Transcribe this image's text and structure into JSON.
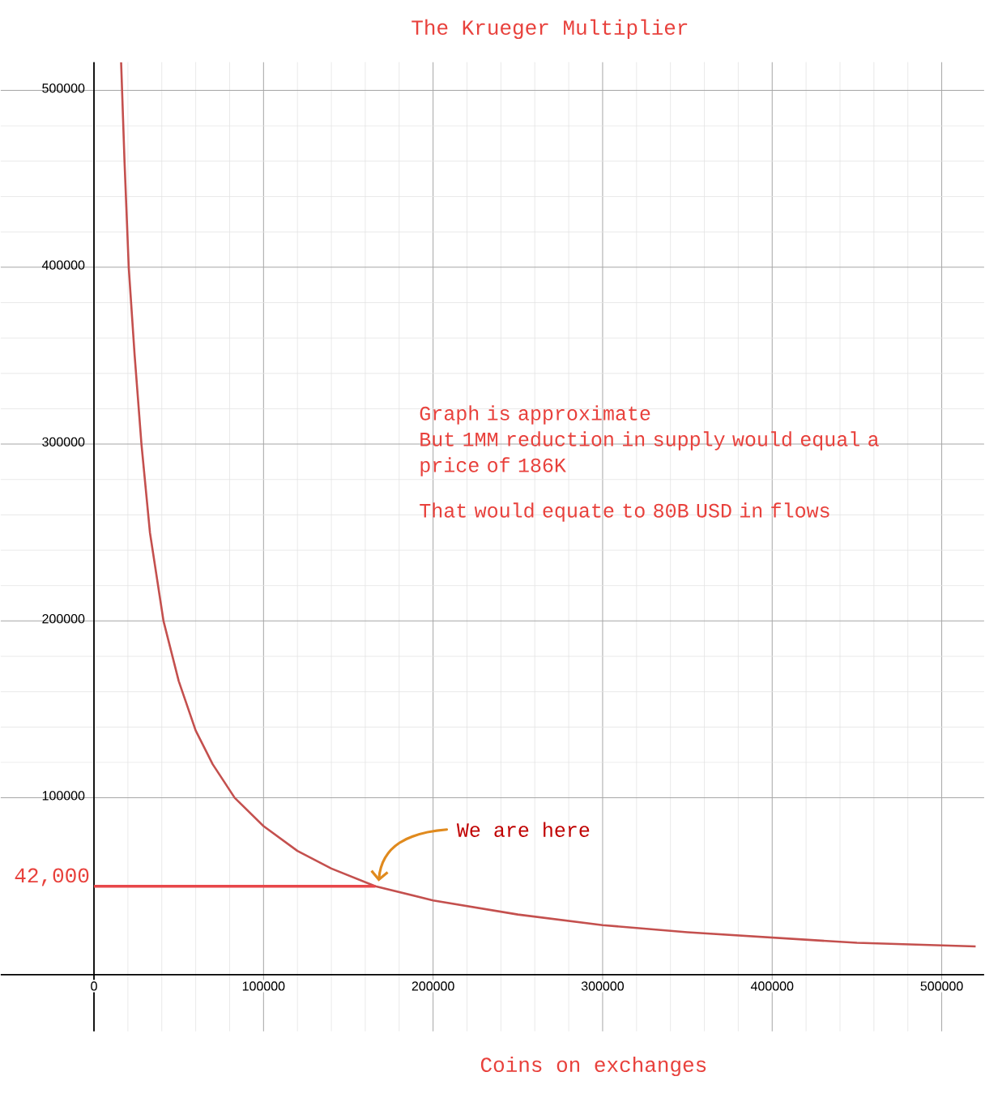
{
  "chart_data": {
    "type": "line",
    "title": "The Krueger Multiplier",
    "xlabel": "Coins on exchanges",
    "xlim": [
      -55000,
      525000
    ],
    "ylim": [
      -32000,
      516000
    ],
    "xticks": [
      0,
      100000,
      200000,
      300000,
      400000,
      500000
    ],
    "yticks": [
      100000,
      200000,
      300000,
      400000,
      500000
    ],
    "grid": true,
    "series": [
      {
        "color": "#c4504e",
        "x": [
          16000,
          18000,
          20500,
          24000,
          28000,
          33000,
          41000,
          50000,
          60000,
          70000,
          83000,
          100000,
          120000,
          140000,
          166000,
          200000,
          250000,
          300000,
          350000,
          400000,
          450000,
          520000
        ],
        "values": [
          516000,
          460000,
          400000,
          350000,
          300000,
          250000,
          200000,
          166000,
          138000,
          119000,
          100000,
          84000,
          70000,
          60000,
          50000,
          42000,
          34000,
          28000,
          24000,
          21000,
          18000,
          16000
        ]
      },
      {
        "color": "#e8474a",
        "x": [
          0,
          166000
        ],
        "values": [
          50000,
          50000
        ]
      }
    ],
    "annotations": [
      "Graph is approximate",
      "But 1MM reduction in supply would equal a price of 186K",
      "That would equate to 80B USD in flows",
      "42,000",
      {
        "text": "We are here",
        "x": 166000,
        "y": 50000
      }
    ]
  }
}
